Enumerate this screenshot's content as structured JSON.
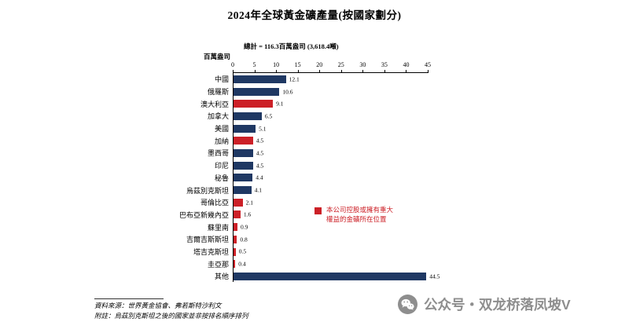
{
  "title": "2024年全球黃金礦產量(按國家劃分)",
  "chart_data": {
    "type": "bar",
    "orientation": "horizontal",
    "unit_label": "百萬盎司",
    "total_label": "總計 = 116.3百萬盎司 (3,618.4噸)",
    "xlim": [
      0,
      45
    ],
    "x_ticks": [
      0,
      5,
      10,
      15,
      20,
      25,
      30,
      35,
      40,
      45
    ],
    "grid": false,
    "axis_position": "top",
    "categories": [
      "中國",
      "俄羅斯",
      "澳大利亞",
      "加拿大",
      "美國",
      "加納",
      "墨西哥",
      "印尼",
      "秘魯",
      "烏茲別克斯坦",
      "哥倫比亞",
      "巴布亞新幾內亞",
      "蘇里南",
      "吉爾吉斯斯坦",
      "塔吉克斯坦",
      "圭亞那",
      "其他"
    ],
    "values": [
      12.1,
      10.6,
      9.1,
      6.5,
      5.1,
      4.5,
      4.5,
      4.5,
      4.4,
      4.1,
      2.1,
      1.6,
      0.9,
      0.8,
      0.5,
      0.4,
      44.5
    ],
    "highlighted": [
      false,
      false,
      true,
      false,
      false,
      true,
      false,
      false,
      false,
      false,
      true,
      true,
      true,
      true,
      true,
      true,
      false
    ],
    "colors": {
      "default": "#1f3863",
      "highlight": "#cc2027"
    },
    "legend": {
      "color": "#cc2027",
      "lines": [
        "本公司控股或擁有重大",
        "權益的金礦所在位置"
      ]
    }
  },
  "footer": {
    "source": "資料來源：世界黃金協會、弗若斯特沙利文",
    "note": "附註：烏茲別克斯坦之後的國家並非按排名順序排列"
  },
  "watermark": {
    "icon": "wechat-icon",
    "text": "公众号・双龙桥落凤坡V"
  }
}
